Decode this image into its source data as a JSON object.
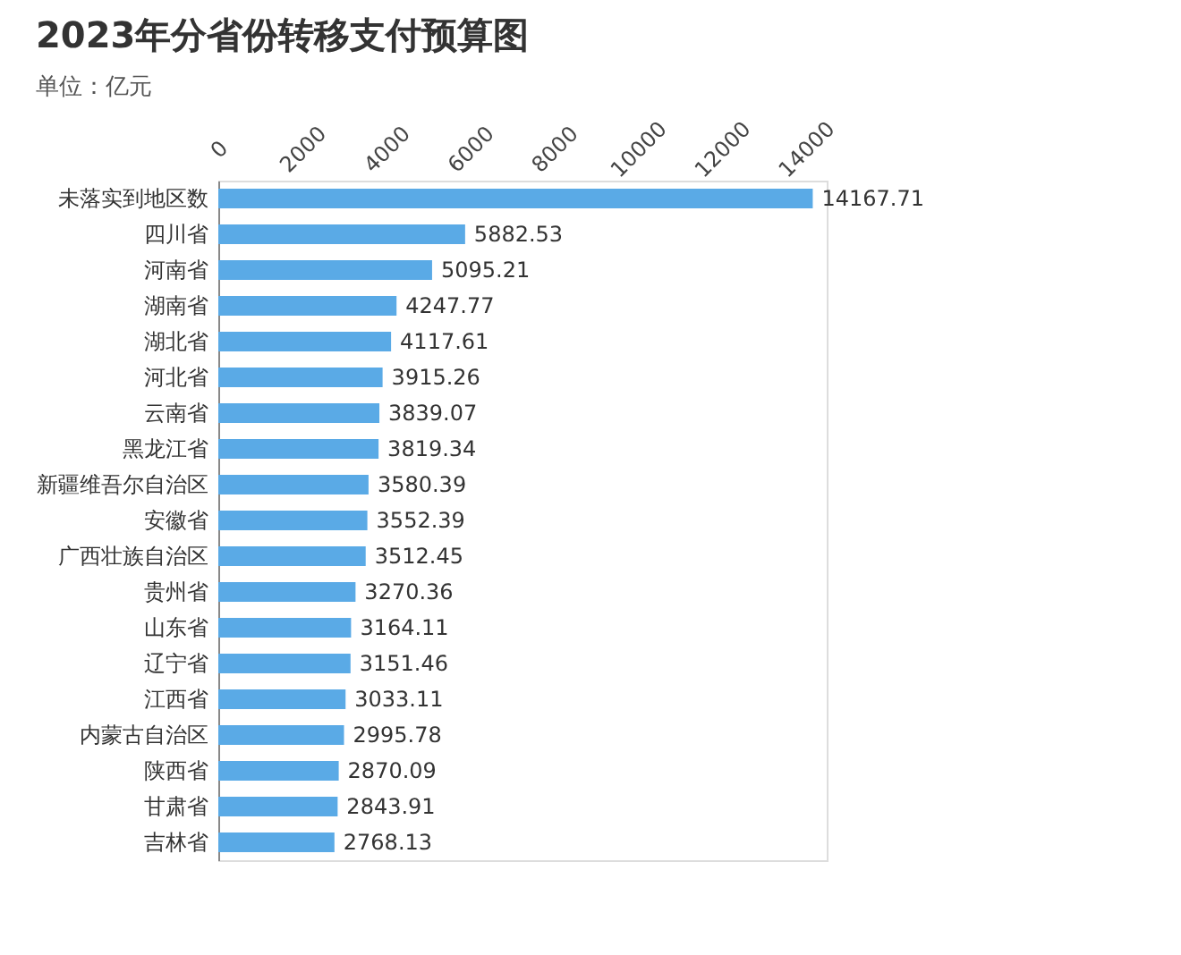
{
  "chart_data": {
    "type": "bar",
    "orientation": "horizontal",
    "title": "2023年分省份转移支付预算图",
    "subtitle": "单位：亿元",
    "categories": [
      "未落实到地区数",
      "四川省",
      "河南省",
      "湖南省",
      "湖北省",
      "河北省",
      "云南省",
      "黑龙江省",
      "新疆维吾尔自治区",
      "安徽省",
      "广西壮族自治区",
      "贵州省",
      "山东省",
      "辽宁省",
      "江西省",
      "内蒙古自治区",
      "陕西省",
      "甘肃省",
      "吉林省"
    ],
    "values": [
      14167.71,
      5882.53,
      5095.21,
      4247.77,
      4117.61,
      3915.26,
      3839.07,
      3819.34,
      3580.39,
      3552.39,
      3512.45,
      3270.36,
      3164.11,
      3151.46,
      3033.11,
      2995.78,
      2870.09,
      2843.91,
      2768.13
    ],
    "color": "#5aaae6",
    "xlim": [
      0,
      14500
    ],
    "xticks": [
      0,
      2000,
      4000,
      6000,
      8000,
      10000,
      12000,
      14000
    ],
    "grid": false,
    "data_labels": true
  }
}
